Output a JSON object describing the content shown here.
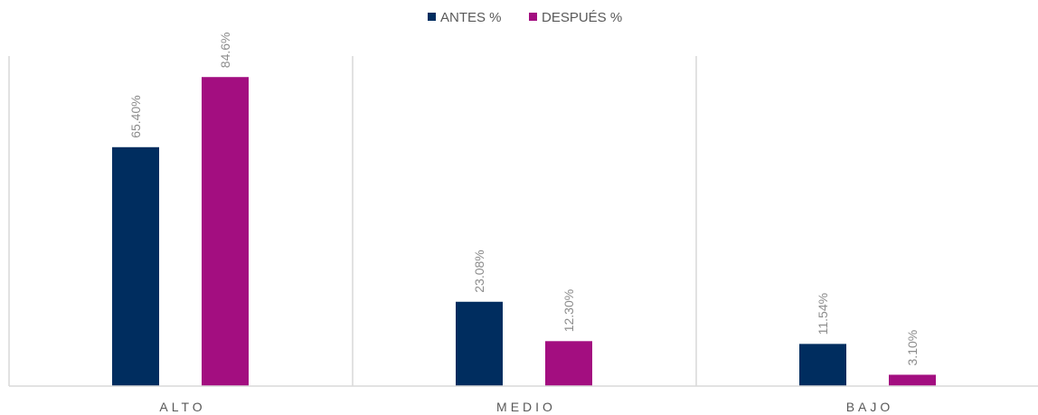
{
  "chart_data": {
    "type": "bar",
    "categories": [
      "ALTO",
      "MEDIO",
      "BAJO"
    ],
    "series": [
      {
        "name": "ANTES %",
        "color": "#002D5F",
        "values": [
          65.4,
          23.08,
          11.54
        ],
        "labels": [
          "65.40%",
          "23.08%",
          "11.54%"
        ]
      },
      {
        "name": "DESPUÉS %",
        "color": "#A30E80",
        "values": [
          84.6,
          12.3,
          3.1
        ],
        "labels": [
          "84.6%",
          "12.30%",
          "3.10%"
        ]
      }
    ],
    "title": "",
    "xlabel": "",
    "ylabel": "",
    "ylim": [
      0,
      100
    ],
    "legend_position": "top-center",
    "grid": "vertical category separators",
    "axis_color": "#D9D9D9"
  }
}
